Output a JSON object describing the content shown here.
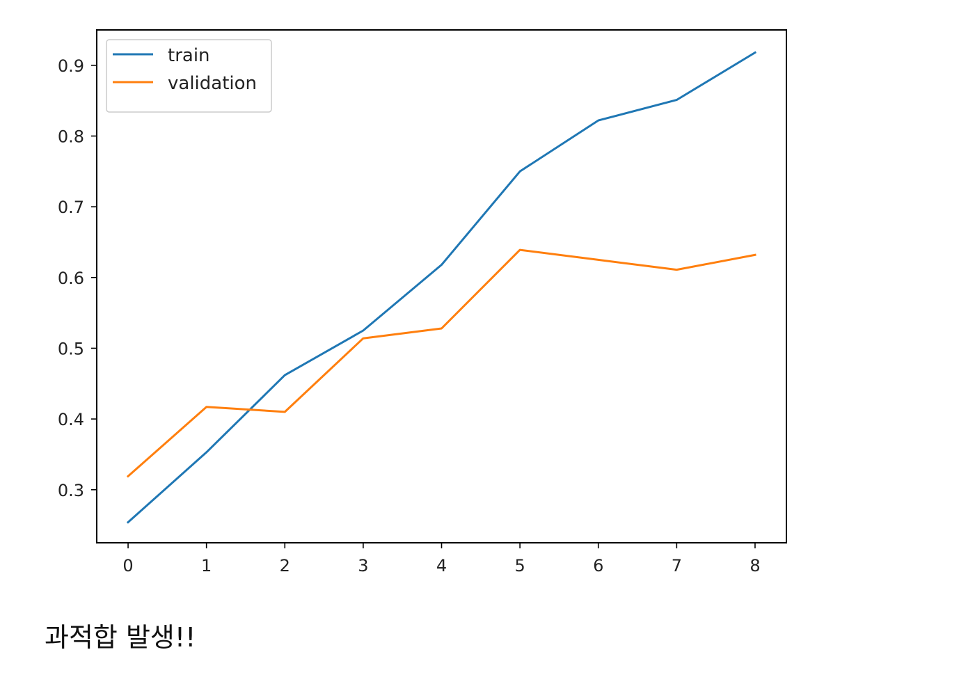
{
  "chart_data": {
    "type": "line",
    "title": "",
    "xlabel": "",
    "ylabel": "",
    "x": [
      0,
      1,
      2,
      3,
      4,
      5,
      6,
      7,
      8
    ],
    "xlim": [
      -0.4,
      8.4
    ],
    "ylim": [
      0.225,
      0.95
    ],
    "xticks": [
      "0",
      "1",
      "2",
      "3",
      "4",
      "5",
      "6",
      "7",
      "8"
    ],
    "yticks": [
      "0.3",
      "0.4",
      "0.5",
      "0.6",
      "0.7",
      "0.8",
      "0.9"
    ],
    "grid": false,
    "legend_position": "top-left",
    "series": [
      {
        "name": "train",
        "color": "#1f77b4",
        "values": [
          0.254,
          0.353,
          0.462,
          0.525,
          0.618,
          0.75,
          0.822,
          0.851,
          0.918
        ]
      },
      {
        "name": "validation",
        "color": "#ff7f0e",
        "values": [
          0.319,
          0.417,
          0.41,
          0.514,
          0.528,
          0.639,
          0.625,
          0.611,
          0.632
        ]
      }
    ]
  },
  "caption": "과적합 발생!!"
}
